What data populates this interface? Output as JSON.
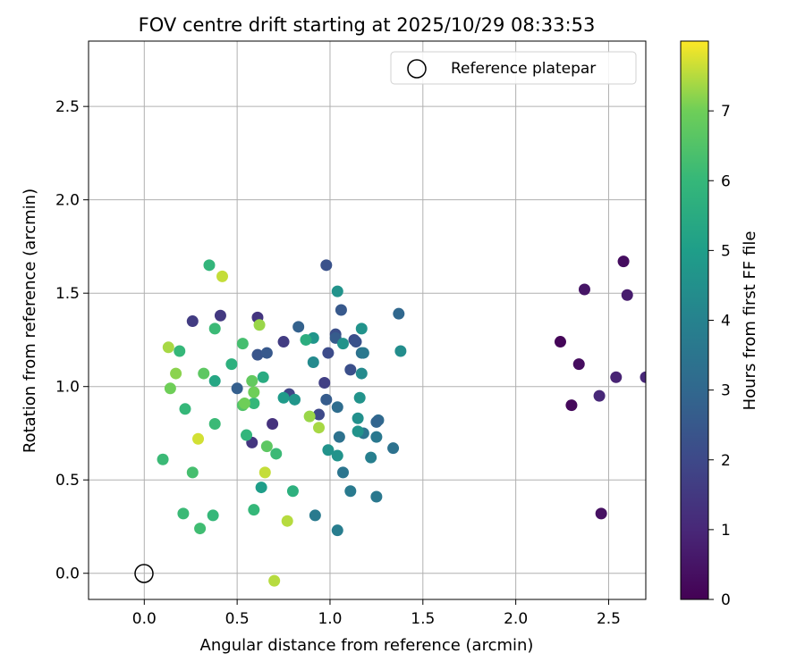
{
  "chart_data": {
    "type": "scatter",
    "title": "FOV centre drift starting at 2025/10/29 08:33:53",
    "xlabel": "Angular distance from reference (arcmin)",
    "ylabel": "Rotation from reference (arcmin)",
    "xlim": [
      -0.3,
      2.7
    ],
    "ylim": [
      -0.14,
      2.85
    ],
    "xticks": [
      0.0,
      0.5,
      1.0,
      1.5,
      2.0,
      2.5
    ],
    "xtick_labels": [
      "0.0",
      "0.5",
      "1.0",
      "1.5",
      "2.0",
      "2.5"
    ],
    "yticks": [
      0.0,
      0.5,
      1.0,
      1.5,
      2.0,
      2.5
    ],
    "ytick_labels": [
      "0.0",
      "0.5",
      "1.0",
      "1.5",
      "2.0",
      "2.5"
    ],
    "grid": true,
    "legend": {
      "position": "top-right",
      "entries": [
        {
          "label": "Reference platepar",
          "marker": "open-circle"
        }
      ]
    },
    "reference_point": {
      "x": 0.0,
      "y": 0.0
    },
    "colorbar": {
      "label": "Hours from first FF file",
      "colormap": "viridis",
      "range": [
        0,
        8
      ],
      "ticks": [
        0,
        1,
        2,
        3,
        4,
        5,
        6,
        7
      ],
      "tick_labels": [
        "0",
        "1",
        "2",
        "3",
        "4",
        "5",
        "6",
        "7"
      ]
    },
    "points": [
      {
        "x": 2.58,
        "y": 1.67,
        "c": 0.3
      },
      {
        "x": 2.37,
        "y": 1.52,
        "c": 0.5
      },
      {
        "x": 2.6,
        "y": 1.49,
        "c": 0.7
      },
      {
        "x": 2.24,
        "y": 1.24,
        "c": 0.1
      },
      {
        "x": 2.34,
        "y": 1.12,
        "c": 0.3
      },
      {
        "x": 2.54,
        "y": 1.05,
        "c": 0.9
      },
      {
        "x": 2.7,
        "y": 1.05,
        "c": 1.0
      },
      {
        "x": 2.45,
        "y": 0.95,
        "c": 1.0
      },
      {
        "x": 2.3,
        "y": 0.9,
        "c": 0.2
      },
      {
        "x": 2.46,
        "y": 0.32,
        "c": 0.4
      },
      {
        "x": 0.98,
        "y": 1.65,
        "c": 2.3
      },
      {
        "x": 1.37,
        "y": 1.39,
        "c": 3.0
      },
      {
        "x": 1.06,
        "y": 1.41,
        "c": 2.5
      },
      {
        "x": 0.26,
        "y": 1.35,
        "c": 1.6
      },
      {
        "x": 0.41,
        "y": 1.38,
        "c": 1.5
      },
      {
        "x": 0.61,
        "y": 1.37,
        "c": 1.4
      },
      {
        "x": 0.83,
        "y": 1.32,
        "c": 2.8
      },
      {
        "x": 1.03,
        "y": 1.28,
        "c": 2.2
      },
      {
        "x": 1.03,
        "y": 1.26,
        "c": 2.6
      },
      {
        "x": 0.75,
        "y": 1.24,
        "c": 1.6
      },
      {
        "x": 1.13,
        "y": 1.25,
        "c": 2.1
      },
      {
        "x": 1.14,
        "y": 1.24,
        "c": 2.3
      },
      {
        "x": 0.99,
        "y": 1.18,
        "c": 2.1
      },
      {
        "x": 1.17,
        "y": 1.18,
        "c": 3.3
      },
      {
        "x": 1.18,
        "y": 1.18,
        "c": 3.6
      },
      {
        "x": 0.61,
        "y": 1.17,
        "c": 2.4
      },
      {
        "x": 0.66,
        "y": 1.18,
        "c": 2.5
      },
      {
        "x": 1.11,
        "y": 1.09,
        "c": 2.2
      },
      {
        "x": 0.5,
        "y": 0.99,
        "c": 2.7
      },
      {
        "x": 0.78,
        "y": 0.96,
        "c": 1.9
      },
      {
        "x": 0.97,
        "y": 1.02,
        "c": 1.7
      },
      {
        "x": 0.98,
        "y": 0.93,
        "c": 2.6
      },
      {
        "x": 1.04,
        "y": 0.89,
        "c": 3.2
      },
      {
        "x": 0.69,
        "y": 0.8,
        "c": 1.3
      },
      {
        "x": 0.94,
        "y": 0.85,
        "c": 2.0
      },
      {
        "x": 0.58,
        "y": 0.7,
        "c": 1.4
      },
      {
        "x": 1.26,
        "y": 0.82,
        "c": 3.1
      },
      {
        "x": 1.25,
        "y": 0.81,
        "c": 2.9
      },
      {
        "x": 1.18,
        "y": 0.75,
        "c": 3.5
      },
      {
        "x": 1.05,
        "y": 0.73,
        "c": 3.4
      },
      {
        "x": 1.25,
        "y": 0.73,
        "c": 3.6
      },
      {
        "x": 1.34,
        "y": 0.67,
        "c": 3.4
      },
      {
        "x": 1.07,
        "y": 0.54,
        "c": 3.5
      },
      {
        "x": 1.22,
        "y": 0.62,
        "c": 3.9
      },
      {
        "x": 1.11,
        "y": 0.44,
        "c": 3.7
      },
      {
        "x": 1.25,
        "y": 0.41,
        "c": 3.6
      },
      {
        "x": 0.92,
        "y": 0.31,
        "c": 3.7
      },
      {
        "x": 1.04,
        "y": 0.23,
        "c": 3.8
      },
      {
        "x": 1.04,
        "y": 1.51,
        "c": 4.6
      },
      {
        "x": 1.17,
        "y": 1.31,
        "c": 4.6
      },
      {
        "x": 0.91,
        "y": 1.26,
        "c": 4.7
      },
      {
        "x": 1.07,
        "y": 1.23,
        "c": 4.6
      },
      {
        "x": 1.38,
        "y": 1.19,
        "c": 4.4
      },
      {
        "x": 0.91,
        "y": 1.13,
        "c": 4.3
      },
      {
        "x": 1.17,
        "y": 1.07,
        "c": 4.3
      },
      {
        "x": 0.75,
        "y": 0.94,
        "c": 4.9
      },
      {
        "x": 0.81,
        "y": 0.93,
        "c": 4.7
      },
      {
        "x": 1.16,
        "y": 0.94,
        "c": 4.6
      },
      {
        "x": 1.15,
        "y": 0.83,
        "c": 4.5
      },
      {
        "x": 1.15,
        "y": 0.76,
        "c": 4.6
      },
      {
        "x": 0.99,
        "y": 0.66,
        "c": 4.6
      },
      {
        "x": 1.04,
        "y": 0.63,
        "c": 4.6
      },
      {
        "x": 0.63,
        "y": 0.46,
        "c": 5.0
      },
      {
        "x": 0.38,
        "y": 1.03,
        "c": 5.3
      },
      {
        "x": 0.64,
        "y": 1.05,
        "c": 5.5
      },
      {
        "x": 0.87,
        "y": 1.25,
        "c": 5.6
      },
      {
        "x": 0.47,
        "y": 1.12,
        "c": 5.7
      },
      {
        "x": 0.8,
        "y": 0.44,
        "c": 5.7
      },
      {
        "x": 0.35,
        "y": 1.65,
        "c": 5.9
      },
      {
        "x": 0.38,
        "y": 1.31,
        "c": 6.1
      },
      {
        "x": 0.53,
        "y": 1.23,
        "c": 6.3
      },
      {
        "x": 0.19,
        "y": 1.19,
        "c": 6.0
      },
      {
        "x": 0.59,
        "y": 0.91,
        "c": 6.0
      },
      {
        "x": 0.53,
        "y": 0.9,
        "c": 6.5
      },
      {
        "x": 0.22,
        "y": 0.88,
        "c": 6.0
      },
      {
        "x": 0.38,
        "y": 0.8,
        "c": 6.1
      },
      {
        "x": 0.55,
        "y": 0.74,
        "c": 5.9
      },
      {
        "x": 0.71,
        "y": 0.64,
        "c": 6.1
      },
      {
        "x": 0.1,
        "y": 0.61,
        "c": 6.1
      },
      {
        "x": 0.26,
        "y": 0.54,
        "c": 6.3
      },
      {
        "x": 0.21,
        "y": 0.32,
        "c": 6.1
      },
      {
        "x": 0.37,
        "y": 0.31,
        "c": 6.0
      },
      {
        "x": 0.59,
        "y": 0.34,
        "c": 6.0
      },
      {
        "x": 0.3,
        "y": 0.24,
        "c": 6.2
      },
      {
        "x": 0.32,
        "y": 1.07,
        "c": 6.7
      },
      {
        "x": 0.58,
        "y": 1.03,
        "c": 6.8
      },
      {
        "x": 0.59,
        "y": 0.97,
        "c": 7.0
      },
      {
        "x": 0.54,
        "y": 0.91,
        "c": 7.0
      },
      {
        "x": 0.66,
        "y": 0.68,
        "c": 6.7
      },
      {
        "x": 0.14,
        "y": 0.99,
        "c": 7.0
      },
      {
        "x": 0.62,
        "y": 1.33,
        "c": 7.3
      },
      {
        "x": 0.17,
        "y": 1.07,
        "c": 7.2
      },
      {
        "x": 0.13,
        "y": 1.21,
        "c": 7.4
      },
      {
        "x": 0.42,
        "y": 1.59,
        "c": 7.6
      },
      {
        "x": 0.89,
        "y": 0.84,
        "c": 7.3
      },
      {
        "x": 0.94,
        "y": 0.78,
        "c": 7.4
      },
      {
        "x": 0.29,
        "y": 0.72,
        "c": 7.7
      },
      {
        "x": 0.65,
        "y": 0.54,
        "c": 7.6
      },
      {
        "x": 0.77,
        "y": 0.28,
        "c": 7.5
      },
      {
        "x": 0.7,
        "y": -0.04,
        "c": 7.5
      }
    ]
  }
}
